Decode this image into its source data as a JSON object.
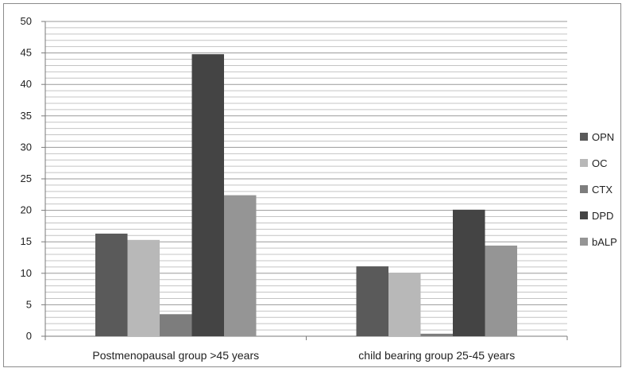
{
  "chart_data": {
    "type": "bar",
    "title": "",
    "xlabel": "",
    "ylabel": "",
    "ylim": [
      0,
      50
    ],
    "yticks": [
      0,
      5,
      10,
      15,
      20,
      25,
      30,
      35,
      40,
      45,
      50
    ],
    "grid": true,
    "legend_position": "right",
    "categories": [
      "Postmenopausal group >45 years",
      "child bearing group 25-45 years"
    ],
    "series": [
      {
        "name": "OPN",
        "color": "#5a5a5a",
        "values": [
          16.3,
          11.1
        ]
      },
      {
        "name": "OC",
        "color": "#b8b8b8",
        "values": [
          15.3,
          10.1
        ]
      },
      {
        "name": "CTX",
        "color": "#7d7d7d",
        "values": [
          3.5,
          0.4
        ]
      },
      {
        "name": "DPD",
        "color": "#444444",
        "values": [
          44.8,
          20.1
        ]
      },
      {
        "name": "bALP",
        "color": "#959595",
        "values": [
          22.4,
          14.4
        ]
      }
    ]
  }
}
